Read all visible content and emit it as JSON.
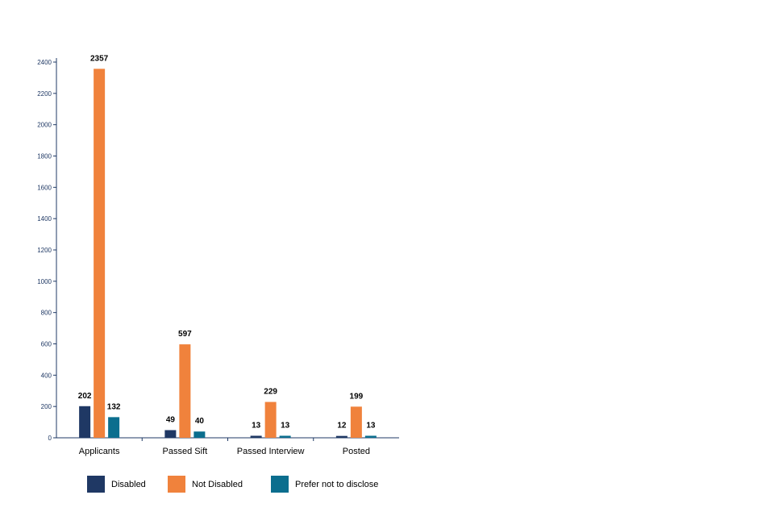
{
  "chart_data": {
    "type": "bar",
    "title": "",
    "xlabel": "",
    "ylabel": "",
    "categories": [
      "Applicants",
      "Passed Sift",
      "Passed Interview",
      "Posted"
    ],
    "series": [
      {
        "name": "Disabled",
        "values": [
          202,
          49,
          13,
          12
        ],
        "color": "#1f3864"
      },
      {
        "name": "Not Disabled",
        "values": [
          2357,
          597,
          229,
          199
        ],
        "color": "#f0823c"
      },
      {
        "name": "Prefer not to disclose",
        "values": [
          132,
          40,
          13,
          13
        ],
        "color": "#0b6e8e"
      }
    ],
    "ylim": [
      0,
      2400
    ],
    "yticks": [
      0,
      200,
      400,
      600,
      800,
      1000,
      1200,
      1400,
      1600,
      1800,
      2000,
      2200,
      2400
    ],
    "grid": false,
    "legend_position": "bottom"
  }
}
